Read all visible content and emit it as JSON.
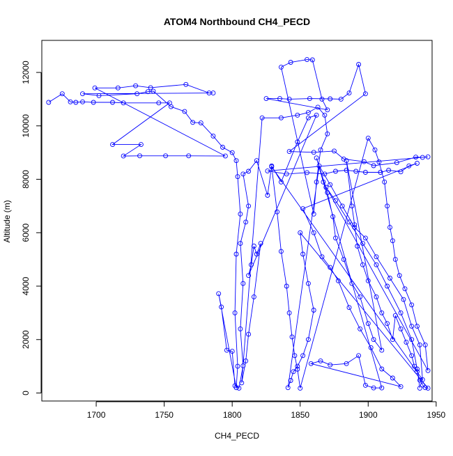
{
  "chart_data": {
    "type": "line",
    "title": "ATOM4 Northbound CH4_PECD",
    "xlabel": "CH4_PECD",
    "ylabel": "Altitude (m)",
    "xlim": [
      1660,
      1947
    ],
    "ylim": [
      -300,
      13200
    ],
    "x_ticks": [
      1700,
      1750,
      1800,
      1850,
      1900,
      1950
    ],
    "y_ticks": [
      0,
      2000,
      4000,
      6000,
      8000,
      10000,
      12000
    ],
    "series": [
      {
        "color": "#0000ff",
        "marker": "open-circle",
        "points": [
          [
            1665,
            10880
          ],
          [
            1675,
            11200
          ],
          [
            1681,
            10900
          ],
          [
            1685,
            10880
          ],
          [
            1690,
            10900
          ],
          [
            1698,
            10880
          ],
          [
            1712,
            10880
          ],
          [
            1720,
            10860
          ],
          [
            1746,
            10860
          ],
          [
            1754,
            10860
          ],
          [
            1712,
            9300
          ],
          [
            1733,
            9300
          ],
          [
            1720,
            8870
          ],
          [
            1732,
            8880
          ],
          [
            1751,
            8880
          ],
          [
            1768,
            8880
          ],
          [
            1795,
            8870
          ],
          [
            1699,
            11420
          ],
          [
            1716,
            11420
          ],
          [
            1729,
            11500
          ],
          [
            1740,
            11430
          ],
          [
            1766,
            11550
          ],
          [
            1783,
            11230
          ],
          [
            1786,
            11230
          ],
          [
            1690,
            11200
          ],
          [
            1702,
            11130
          ],
          [
            1730,
            11200
          ],
          [
            1738,
            11280
          ],
          [
            1742,
            11300
          ],
          [
            1755,
            10720
          ],
          [
            1765,
            10540
          ],
          [
            1771,
            10130
          ],
          [
            1777,
            10110
          ],
          [
            1786,
            9620
          ],
          [
            1793,
            9200
          ],
          [
            1800,
            9000
          ],
          [
            1803,
            8700
          ],
          [
            1804,
            8100
          ],
          [
            1806,
            6700
          ],
          [
            1803,
            5200
          ],
          [
            1802,
            3000
          ],
          [
            1804,
            1000
          ],
          [
            1803,
            200
          ],
          [
            1790,
            3720
          ],
          [
            1792,
            3220
          ],
          [
            1796,
            1600
          ],
          [
            1800,
            1560
          ],
          [
            1802,
            270
          ],
          [
            1805,
            180
          ],
          [
            1808,
            1020
          ],
          [
            1806,
            2400
          ],
          [
            1808,
            4100
          ],
          [
            1806,
            5600
          ],
          [
            1810,
            6400
          ],
          [
            1812,
            7000
          ],
          [
            1808,
            8200
          ],
          [
            1812,
            8300
          ],
          [
            1818,
            8700
          ],
          [
            1826,
            7400
          ],
          [
            1829,
            8500
          ],
          [
            1836,
            7900
          ],
          [
            1848,
            9400
          ],
          [
            1856,
            10300
          ],
          [
            1862,
            10400
          ],
          [
            1812,
            4400
          ],
          [
            1814,
            4800
          ],
          [
            1816,
            5500
          ],
          [
            1818,
            5200
          ],
          [
            1821,
            5600
          ],
          [
            1816,
            3600
          ],
          [
            1812,
            2200
          ],
          [
            1810,
            1200
          ],
          [
            1807,
            380
          ],
          [
            1822,
            10300
          ],
          [
            1836,
            10300
          ],
          [
            1848,
            10400
          ],
          [
            1856,
            10500
          ],
          [
            1863,
            10700
          ],
          [
            1868,
            10400
          ],
          [
            1870,
            9700
          ],
          [
            1865,
            9100
          ],
          [
            1862,
            7900
          ],
          [
            1860,
            6700
          ],
          [
            1836,
            12200
          ],
          [
            1843,
            12380
          ],
          [
            1855,
            12480
          ],
          [
            1859,
            12470
          ],
          [
            1866,
            11000
          ],
          [
            1870,
            10600
          ],
          [
            1825,
            11020
          ],
          [
            1835,
            11020
          ],
          [
            1842,
            11000
          ],
          [
            1857,
            11020
          ],
          [
            1872,
            11010
          ],
          [
            1880,
            11000
          ],
          [
            1886,
            11230
          ],
          [
            1893,
            12300
          ],
          [
            1898,
            11200
          ],
          [
            1842,
            9040
          ],
          [
            1860,
            9010
          ],
          [
            1875,
            9060
          ],
          [
            1882,
            8760
          ],
          [
            1897,
            8660
          ],
          [
            1904,
            8510
          ],
          [
            1921,
            8620
          ],
          [
            1935,
            8830
          ],
          [
            1940,
            8820
          ],
          [
            1944,
            8840
          ],
          [
            1826,
            8310
          ],
          [
            1840,
            8200
          ],
          [
            1855,
            8250
          ],
          [
            1868,
            8200
          ],
          [
            1876,
            8300
          ],
          [
            1884,
            8340
          ],
          [
            1891,
            8300
          ],
          [
            1898,
            8260
          ],
          [
            1909,
            8260
          ],
          [
            1915,
            8340
          ],
          [
            1924,
            8280
          ],
          [
            1930,
            8500
          ],
          [
            1936,
            8600
          ],
          [
            1852,
            6900
          ],
          [
            1860,
            6000
          ],
          [
            1866,
            5100
          ],
          [
            1872,
            4700
          ],
          [
            1878,
            4200
          ],
          [
            1886,
            3200
          ],
          [
            1894,
            2400
          ],
          [
            1902,
            1700
          ],
          [
            1910,
            900
          ],
          [
            1918,
            560
          ],
          [
            1924,
            240
          ],
          [
            1858,
            1100
          ],
          [
            1865,
            1200
          ],
          [
            1872,
            1050
          ],
          [
            1884,
            1100
          ],
          [
            1893,
            1400
          ],
          [
            1898,
            290
          ],
          [
            1904,
            190
          ],
          [
            1910,
            190
          ],
          [
            1862,
            8800
          ],
          [
            1870,
            7500
          ],
          [
            1874,
            6600
          ],
          [
            1876,
            5800
          ],
          [
            1882,
            5000
          ],
          [
            1888,
            4100
          ],
          [
            1894,
            3600
          ],
          [
            1900,
            2600
          ],
          [
            1904,
            2000
          ],
          [
            1910,
            1600
          ],
          [
            1884,
            8700
          ],
          [
            1888,
            7000
          ],
          [
            1890,
            6300
          ],
          [
            1892,
            5500
          ],
          [
            1896,
            4800
          ],
          [
            1900,
            4200
          ],
          [
            1906,
            3600
          ],
          [
            1910,
            3000
          ],
          [
            1914,
            2600
          ],
          [
            1918,
            2000
          ],
          [
            1920,
            2900
          ],
          [
            1924,
            2400
          ],
          [
            1928,
            1900
          ],
          [
            1932,
            1400
          ],
          [
            1934,
            1000
          ],
          [
            1936,
            800
          ],
          [
            1938,
            480
          ],
          [
            1940,
            300
          ],
          [
            1942,
            200
          ],
          [
            1944,
            180
          ],
          [
            1850,
            6000
          ],
          [
            1852,
            5200
          ],
          [
            1856,
            4100
          ],
          [
            1860,
            3100
          ],
          [
            1856,
            2000
          ],
          [
            1852,
            1400
          ],
          [
            1848,
            1000
          ],
          [
            1845,
            800
          ],
          [
            1843,
            470
          ],
          [
            1841,
            200
          ],
          [
            1864,
            8500
          ],
          [
            1872,
            7800
          ],
          [
            1881,
            7000
          ],
          [
            1890,
            6200
          ],
          [
            1898,
            5800
          ],
          [
            1906,
            5100
          ],
          [
            1916,
            4300
          ],
          [
            1926,
            3500
          ],
          [
            1932,
            2500
          ],
          [
            1938,
            1800
          ],
          [
            1940,
            500
          ],
          [
            1829,
            8470
          ],
          [
            1833,
            6780
          ],
          [
            1836,
            5300
          ],
          [
            1840,
            4000
          ],
          [
            1842,
            3000
          ],
          [
            1844,
            2100
          ],
          [
            1846,
            1400
          ],
          [
            1848,
            890
          ],
          [
            1850,
            180
          ],
          [
            1900,
            9540
          ],
          [
            1905,
            9100
          ],
          [
            1908,
            8650
          ],
          [
            1912,
            7900
          ],
          [
            1914,
            7000
          ],
          [
            1916,
            6200
          ],
          [
            1918,
            5700
          ],
          [
            1920,
            5000
          ],
          [
            1923,
            4400
          ],
          [
            1927,
            3900
          ],
          [
            1932,
            3300
          ],
          [
            1936,
            2500
          ],
          [
            1942,
            1800
          ],
          [
            1944,
            840
          ],
          [
            1867,
            7900
          ],
          [
            1869,
            7700
          ],
          [
            1876,
            7200
          ],
          [
            1886,
            6400
          ],
          [
            1896,
            5600
          ],
          [
            1906,
            4800
          ],
          [
            1914,
            4000
          ],
          [
            1924,
            3000
          ],
          [
            1932,
            2000
          ],
          [
            1936,
            900
          ],
          [
            1938,
            180
          ]
        ]
      }
    ]
  }
}
